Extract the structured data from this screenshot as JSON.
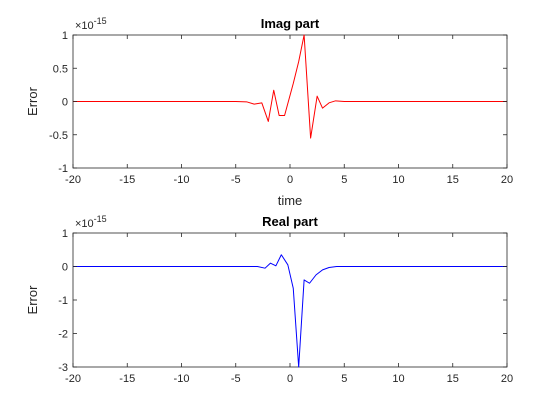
{
  "chart_data": [
    {
      "type": "line",
      "title": "Imag part",
      "xlabel": "time",
      "ylabel": "Error",
      "scale_label": "×10",
      "scale_exponent": "-15",
      "xlim": [
        -20,
        20
      ],
      "ylim": [
        -1,
        1
      ],
      "xticks": [
        "-20",
        "-15",
        "-10",
        "-5",
        "0",
        "5",
        "10",
        "15",
        "20"
      ],
      "yticks": [
        "-1",
        "-0.5",
        "0",
        "0.5",
        "1"
      ],
      "grid": false,
      "series": [
        {
          "color": "#ff0000",
          "x": [
            -20,
            -5,
            -4,
            -3.3,
            -2.6,
            -2.0,
            -1.5,
            -1.0,
            -0.5,
            0.3,
            0.8,
            1.3,
            1.9,
            2.5,
            3.0,
            3.6,
            4.2,
            5.0,
            10,
            20
          ],
          "y": [
            0,
            0,
            -0.005,
            -0.04,
            -0.02,
            -0.3,
            0.17,
            -0.21,
            -0.21,
            0.27,
            0.6,
            1.0,
            -0.55,
            0.08,
            -0.1,
            -0.02,
            0.01,
            0,
            0,
            0
          ]
        }
      ]
    },
    {
      "type": "line",
      "title": "Real part",
      "xlabel": "",
      "ylabel": "Error",
      "scale_label": "×10",
      "scale_exponent": "-15",
      "xlim": [
        -20,
        20
      ],
      "ylim": [
        -3,
        1
      ],
      "xticks": [
        "-20",
        "-15",
        "-10",
        "-5",
        "0",
        "5",
        "10",
        "15",
        "20"
      ],
      "yticks": [
        "-3",
        "-2",
        "-1",
        "0",
        "1"
      ],
      "grid": false,
      "series": [
        {
          "color": "#0000ff",
          "x": [
            -20,
            -4,
            -3.0,
            -2.3,
            -1.8,
            -1.3,
            -0.8,
            -0.2,
            0.3,
            0.8,
            1.3,
            1.8,
            2.4,
            3.0,
            3.6,
            4.3,
            5.0,
            10,
            20
          ],
          "y": [
            0,
            0,
            0,
            -0.05,
            0.1,
            0.02,
            0.35,
            0.05,
            -0.65,
            -3.0,
            -0.4,
            -0.5,
            -0.25,
            -0.1,
            -0.03,
            0,
            0,
            0,
            0
          ]
        }
      ]
    }
  ]
}
